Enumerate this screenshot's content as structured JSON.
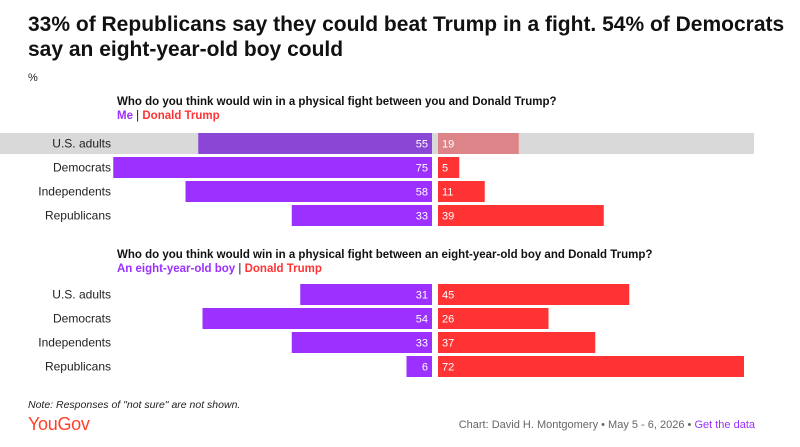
{
  "title": "33% of Republicans say they could beat Trump in a fight. 54% of Democrats say an eight-year-old boy could",
  "unit": "%",
  "panels": [
    {
      "question": "Who do you think would win in a physical fight between you and Donald Trump?",
      "legend_a": "Me",
      "legend_b": "Donald Trump"
    },
    {
      "question": "Who do you think would win in a physical fight between an eight-year-old boy and Donald Trump?",
      "legend_a": "An eight-year-old boy",
      "legend_b": "Donald Trump"
    }
  ],
  "chart_data": [
    {
      "type": "bar",
      "title": "Who do you think would win in a physical fight between you and Donald Trump?",
      "categories": [
        "U.S. adults",
        "Democrats",
        "Independents",
        "Republicans"
      ],
      "series": [
        {
          "name": "Me",
          "values": [
            55,
            75,
            58,
            33
          ]
        },
        {
          "name": "Donald Trump",
          "values": [
            19,
            5,
            11,
            39
          ]
        }
      ],
      "highlighted_category": "U.S. adults",
      "xlim": [
        0,
        80
      ]
    },
    {
      "type": "bar",
      "title": "Who do you think would win in a physical fight between an eight-year-old boy and Donald Trump?",
      "categories": [
        "U.S. adults",
        "Democrats",
        "Independents",
        "Republicans"
      ],
      "series": [
        {
          "name": "An eight-year-old boy",
          "values": [
            31,
            54,
            33,
            6
          ]
        },
        {
          "name": "Donald Trump",
          "values": [
            45,
            26,
            37,
            72
          ]
        }
      ],
      "xlim": [
        0,
        80
      ]
    }
  ],
  "colors": {
    "left": "#9b30ff",
    "right": "#ff3333",
    "highlight_left": "#8a47d6",
    "highlight_right": "#dd8488",
    "highlight_band": "#d9d9d9",
    "brand": "#ff412c"
  },
  "note": "Note: Responses of \"not sure\" are not shown.",
  "brand": "YouGov",
  "credit": "Chart: David H. Montgomery • May 5 - 6, 2026 •",
  "credit_link": "Get the data"
}
